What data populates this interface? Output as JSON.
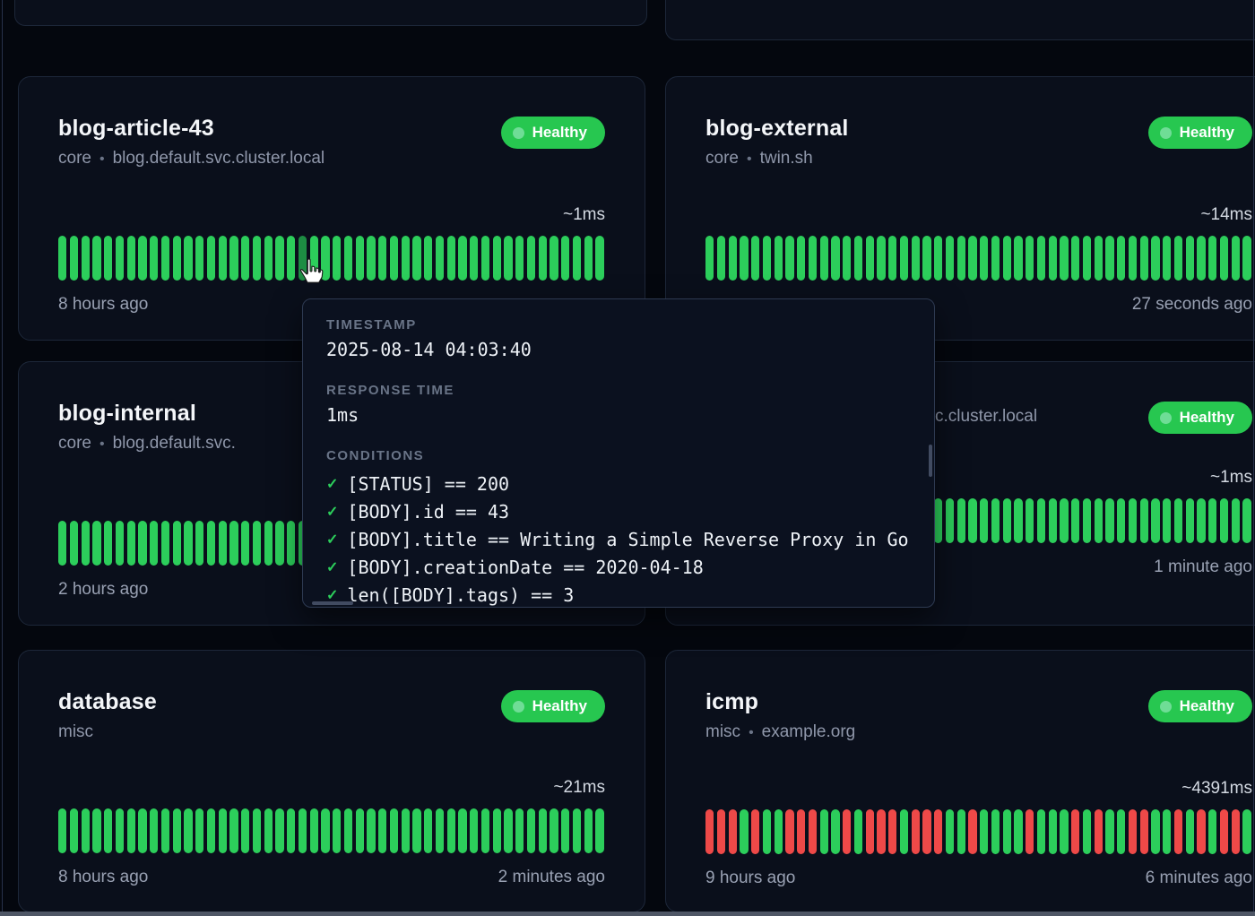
{
  "colors": {
    "healthy_badge": "#27c750",
    "bar_green": "#2cce5b",
    "bar_green_hover": "#1d8d43",
    "bar_red": "#ee4948"
  },
  "cards": [
    {
      "title": "blog-article-43",
      "group": "core",
      "separator": "•",
      "host": "blog.default.svc.cluster.local",
      "status": "Healthy",
      "response_time": "~1ms",
      "footer_left": "8 hours ago",
      "footer_right": "",
      "bars": "GGGGGGGGGGGGGGGGGGGGGGGGGGGGGGGGGGGGGGGGGGGGGGGG",
      "hover_index": 21
    },
    {
      "title": "blog-external",
      "group": "core",
      "separator": "•",
      "host": "twin.sh",
      "status": "Healthy",
      "response_time": "~14ms",
      "footer_left": "",
      "footer_right": "27 seconds ago",
      "bars": "GGGGGGGGGGGGGGGGGGGGGGGGGGGGGGGGGGGGGGGGGGGGGGGG",
      "hover_index": null
    },
    {
      "title": "blog-internal",
      "group": "core",
      "separator": "•",
      "host": "blog.default.svc.",
      "status": "",
      "response_time": "",
      "footer_left": "2 hours ago",
      "footer_right": "",
      "bars": "GGGGGGGGGGGGGGGGGGGGGGGGGGGGGGGGGGGGGGGGGGGGGGGG",
      "hover_index": null
    },
    {
      "title": "",
      "group": "",
      "separator": "",
      "host": "c.cluster.local",
      "status": "Healthy",
      "response_time": "~1ms",
      "footer_left": "",
      "footer_right": "1 minute ago",
      "bars": "GGGGGGGGGGGGGGGGGGGGGGGGGGGGGGGGGGGGGGGGGGGGGGGG",
      "hover_index": null
    },
    {
      "title": "database",
      "group": "misc",
      "separator": "",
      "host": "",
      "status": "Healthy",
      "response_time": "~21ms",
      "footer_left": "8 hours ago",
      "footer_right": "2 minutes ago",
      "bars": "GGGGGGGGGGGGGGGGGGGGGGGGGGGGGGGGGGGGGGGGGGGGGGGG",
      "hover_index": null
    },
    {
      "title": "icmp",
      "group": "misc",
      "separator": "•",
      "host": "example.org",
      "status": "Healthy",
      "response_time": "~4391ms",
      "footer_left": "9 hours ago",
      "footer_right": "6 minutes ago",
      "bars": "RRRGRGGRRRGGRGRRRGRRRGGRGGGGRGGGRGRGGRRGGRGRGRRGR",
      "hover_index": null
    }
  ],
  "tooltip": {
    "timestamp_label": "TIMESTAMP",
    "timestamp": "2025-08-14 04:03:40",
    "response_time_label": "RESPONSE TIME",
    "response_time": "1ms",
    "conditions_label": "CONDITIONS",
    "check_icon": "✓",
    "conditions": [
      "[STATUS] == 200",
      "[BODY].id == 43",
      "[BODY].title == Writing a Simple Reverse Proxy in Go",
      "[BODY].creationDate == 2020-04-18",
      "len([BODY].tags) == 3"
    ]
  }
}
